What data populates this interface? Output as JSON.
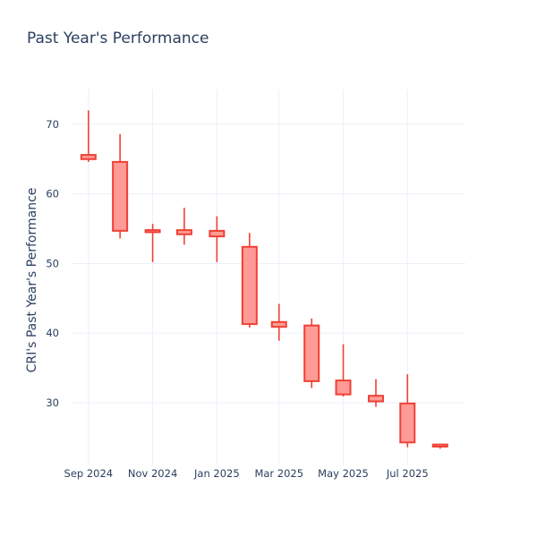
{
  "chart_data": {
    "type": "candlestick",
    "title": "Past Year's Performance",
    "ylabel": "CRI's Past Year's Performance",
    "xlabel": "",
    "ylim": [
      21,
      75
    ],
    "xlim": [
      "2024-08-16",
      "2025-08-25"
    ],
    "grid": true,
    "legend": "none",
    "colors": {
      "increasing": "#ef4135",
      "decreasing": "#ef4135",
      "fill": "#ff9a96"
    },
    "y_ticks": [
      30,
      40,
      50,
      60,
      70
    ],
    "x_ticks": [
      {
        "date": "2024-09-01",
        "label": "Sep 2024"
      },
      {
        "date": "2024-11-01",
        "label": "Nov 2024"
      },
      {
        "date": "2025-01-01",
        "label": "Jan 2025"
      },
      {
        "date": "2025-03-01",
        "label": "Mar 2025"
      },
      {
        "date": "2025-05-01",
        "label": "May 2025"
      },
      {
        "date": "2025-07-01",
        "label": "Jul 2025"
      }
    ],
    "candles": [
      {
        "date": "2024-09-01",
        "open": 65.6,
        "high": 72.0,
        "low": 64.6,
        "close": 65.0
      },
      {
        "date": "2024-10-01",
        "open": 64.6,
        "high": 68.6,
        "low": 53.6,
        "close": 54.7
      },
      {
        "date": "2024-11-01",
        "open": 54.8,
        "high": 55.7,
        "low": 50.2,
        "close": 54.5
      },
      {
        "date": "2024-12-01",
        "open": 54.2,
        "high": 58.0,
        "low": 52.7,
        "close": 54.8
      },
      {
        "date": "2025-01-01",
        "open": 54.7,
        "high": 56.8,
        "low": 50.2,
        "close": 53.9
      },
      {
        "date": "2025-02-01",
        "open": 52.4,
        "high": 54.4,
        "low": 40.8,
        "close": 41.3
      },
      {
        "date": "2025-03-01",
        "open": 41.6,
        "high": 44.2,
        "low": 38.9,
        "close": 40.9
      },
      {
        "date": "2025-04-01",
        "open": 41.1,
        "high": 42.1,
        "low": 32.1,
        "close": 33.1
      },
      {
        "date": "2025-05-01",
        "open": 33.2,
        "high": 38.4,
        "low": 30.9,
        "close": 31.2
      },
      {
        "date": "2025-06-01",
        "open": 31.0,
        "high": 33.4,
        "low": 29.4,
        "close": 30.2
      },
      {
        "date": "2025-07-01",
        "open": 29.9,
        "high": 34.1,
        "low": 23.6,
        "close": 24.3
      },
      {
        "date": "2025-08-01",
        "open": 24.0,
        "high": 24.1,
        "low": 23.4,
        "close": 23.7
      }
    ]
  }
}
